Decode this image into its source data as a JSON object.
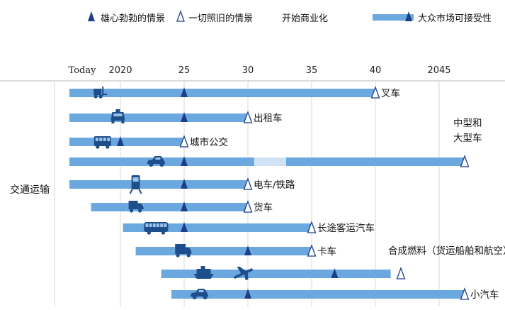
{
  "chart_data": {
    "type": "timeline",
    "legend": [
      {
        "marker": "filled-triangle",
        "label": "雄心勃勃的情景"
      },
      {
        "marker": "open-triangle",
        "label": "一切照旧的情景"
      },
      {
        "marker": "none",
        "label": "开始商业化"
      },
      {
        "marker": "bar-with-triangle",
        "label": "大众市场可接受性"
      }
    ],
    "x_ticks": [
      {
        "label": "Today",
        "value": 2017
      },
      {
        "label": "2020",
        "value": 2020
      },
      {
        "label": "25",
        "value": 2025
      },
      {
        "label": "30",
        "value": 2030
      },
      {
        "label": "35",
        "value": 2035
      },
      {
        "label": "40",
        "value": 2040
      },
      {
        "label": "2045",
        "value": 2045
      }
    ],
    "xlim": [
      2016,
      2052
    ],
    "group_label": "交通运输",
    "rows": [
      {
        "label": "叉车",
        "icon": "forklift-icon",
        "start": 2016,
        "end": 2040,
        "ambitious": 2025,
        "business_as_usual": 2040
      },
      {
        "label": "出租车",
        "icon": "taxi-icon",
        "start": 2016,
        "end": 2030,
        "ambitious": 2025,
        "business_as_usual": 2030
      },
      {
        "label": "城市公交",
        "icon": "bus-icon",
        "start": 2016,
        "end": 2025,
        "ambitious": 2020,
        "business_as_usual": 2025
      },
      {
        "label": "中型和\n大型车",
        "icon": "car-icon",
        "start": 2016,
        "end": 2047,
        "ambitious": 2025,
        "business_as_usual": 2047,
        "label_position": "above-end",
        "faded_segment": [
          2030.5,
          2033
        ]
      },
      {
        "label": "电车/铁路",
        "icon": "train-icon",
        "start": 2016,
        "end": 2030,
        "ambitious": 2025,
        "business_as_usual": 2030
      },
      {
        "label": "货车",
        "icon": "van-icon",
        "start": 2017.7,
        "end": 2030,
        "ambitious": 2025,
        "business_as_usual": 2030
      },
      {
        "label": "长途客运汽车",
        "icon": "coach-icon",
        "start": 2020.2,
        "end": 2035,
        "ambitious": 2025,
        "business_as_usual": 2035
      },
      {
        "label": "卡车",
        "icon": "truck-icon",
        "start": 2021.2,
        "end": 2035,
        "ambitious": 2030,
        "business_as_usual": 2035
      },
      {
        "label": "合成燃料（货运船舶和航空）",
        "icon": "ship-plane-icon",
        "start": 2023.2,
        "end": 2041.2,
        "ambitious": 2036.8,
        "business_as_usual": 2042,
        "label_position": "above-end"
      },
      {
        "label": "小汽车",
        "icon": "car-small-icon",
        "start": 2024,
        "end": 2047,
        "ambitious": 2030,
        "business_as_usual": 2047
      }
    ],
    "colors": {
      "bar": "#6aa8df",
      "bar_faded": "#cfe3f5",
      "marker": "#1d3f8a",
      "icon": "#1f4e8c",
      "grid": "#d9d9d9"
    }
  }
}
